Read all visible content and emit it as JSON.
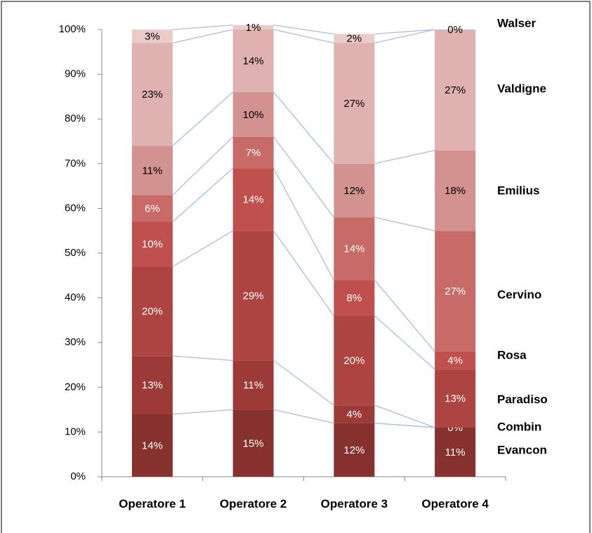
{
  "chart_data": {
    "type": "stacked_bar",
    "categories": [
      "Operatore 1",
      "Operatore 2",
      "Operatore 3",
      "Operatore 4"
    ],
    "series": [
      {
        "name": "Evancon",
        "color": "#87312f",
        "label_color": "#ffffff",
        "values": [
          14,
          15,
          12,
          11
        ],
        "value_labels": [
          "14%",
          "15%",
          "12%",
          "11%"
        ]
      },
      {
        "name": "Combin",
        "color": "#9c3a38",
        "label_color": "#ffffff",
        "values": [
          13,
          11,
          4,
          0
        ],
        "value_labels": [
          "13%",
          "11%",
          "4%",
          "0%"
        ]
      },
      {
        "name": "Paradiso",
        "color": "#ad4441",
        "label_color": "#ffffff",
        "values": [
          20,
          29,
          20,
          13
        ],
        "value_labels": [
          "20%",
          "29%",
          "20%",
          "13%"
        ]
      },
      {
        "name": "Rosa",
        "color": "#c0504d",
        "label_color": "#ffffff",
        "values": [
          10,
          14,
          8,
          4
        ],
        "value_labels": [
          "10%",
          "14%",
          "8%",
          "4%"
        ]
      },
      {
        "name": "Cervino",
        "color": "#c86b68",
        "label_color": "#ffffff",
        "values": [
          6,
          7,
          14,
          27
        ],
        "value_labels": [
          "6%",
          "7%",
          "14%",
          "27%"
        ]
      },
      {
        "name": "Emilius",
        "color": "#d39190",
        "label_color": "#000000",
        "values": [
          11,
          10,
          12,
          18
        ],
        "value_labels": [
          "11%",
          "10%",
          "12%",
          "18%"
        ]
      },
      {
        "name": "Valdigne",
        "color": "#dfb1b0",
        "label_color": "#000000",
        "values": [
          23,
          14,
          27,
          27
        ],
        "value_labels": [
          "23%",
          "14%",
          "27%",
          "27%"
        ]
      },
      {
        "name": "Walser",
        "color": "#ebcbca",
        "label_color": "#000000",
        "values": [
          3,
          1,
          2,
          0
        ],
        "value_labels": [
          "3%",
          "1%",
          "2%",
          "0%"
        ]
      }
    ],
    "ylim": [
      0,
      100
    ],
    "yticks": [
      {
        "value": 0,
        "label": "0%"
      },
      {
        "value": 10,
        "label": "10%"
      },
      {
        "value": 20,
        "label": "20%"
      },
      {
        "value": 30,
        "label": "30%"
      },
      {
        "value": 40,
        "label": "40%"
      },
      {
        "value": 50,
        "label": "50%"
      },
      {
        "value": 60,
        "label": "60%"
      },
      {
        "value": 70,
        "label": "70%"
      },
      {
        "value": 80,
        "label": "80%"
      },
      {
        "value": 90,
        "label": "90%"
      },
      {
        "value": 100,
        "label": "100%"
      }
    ],
    "connector_color": "#a8bde0"
  }
}
